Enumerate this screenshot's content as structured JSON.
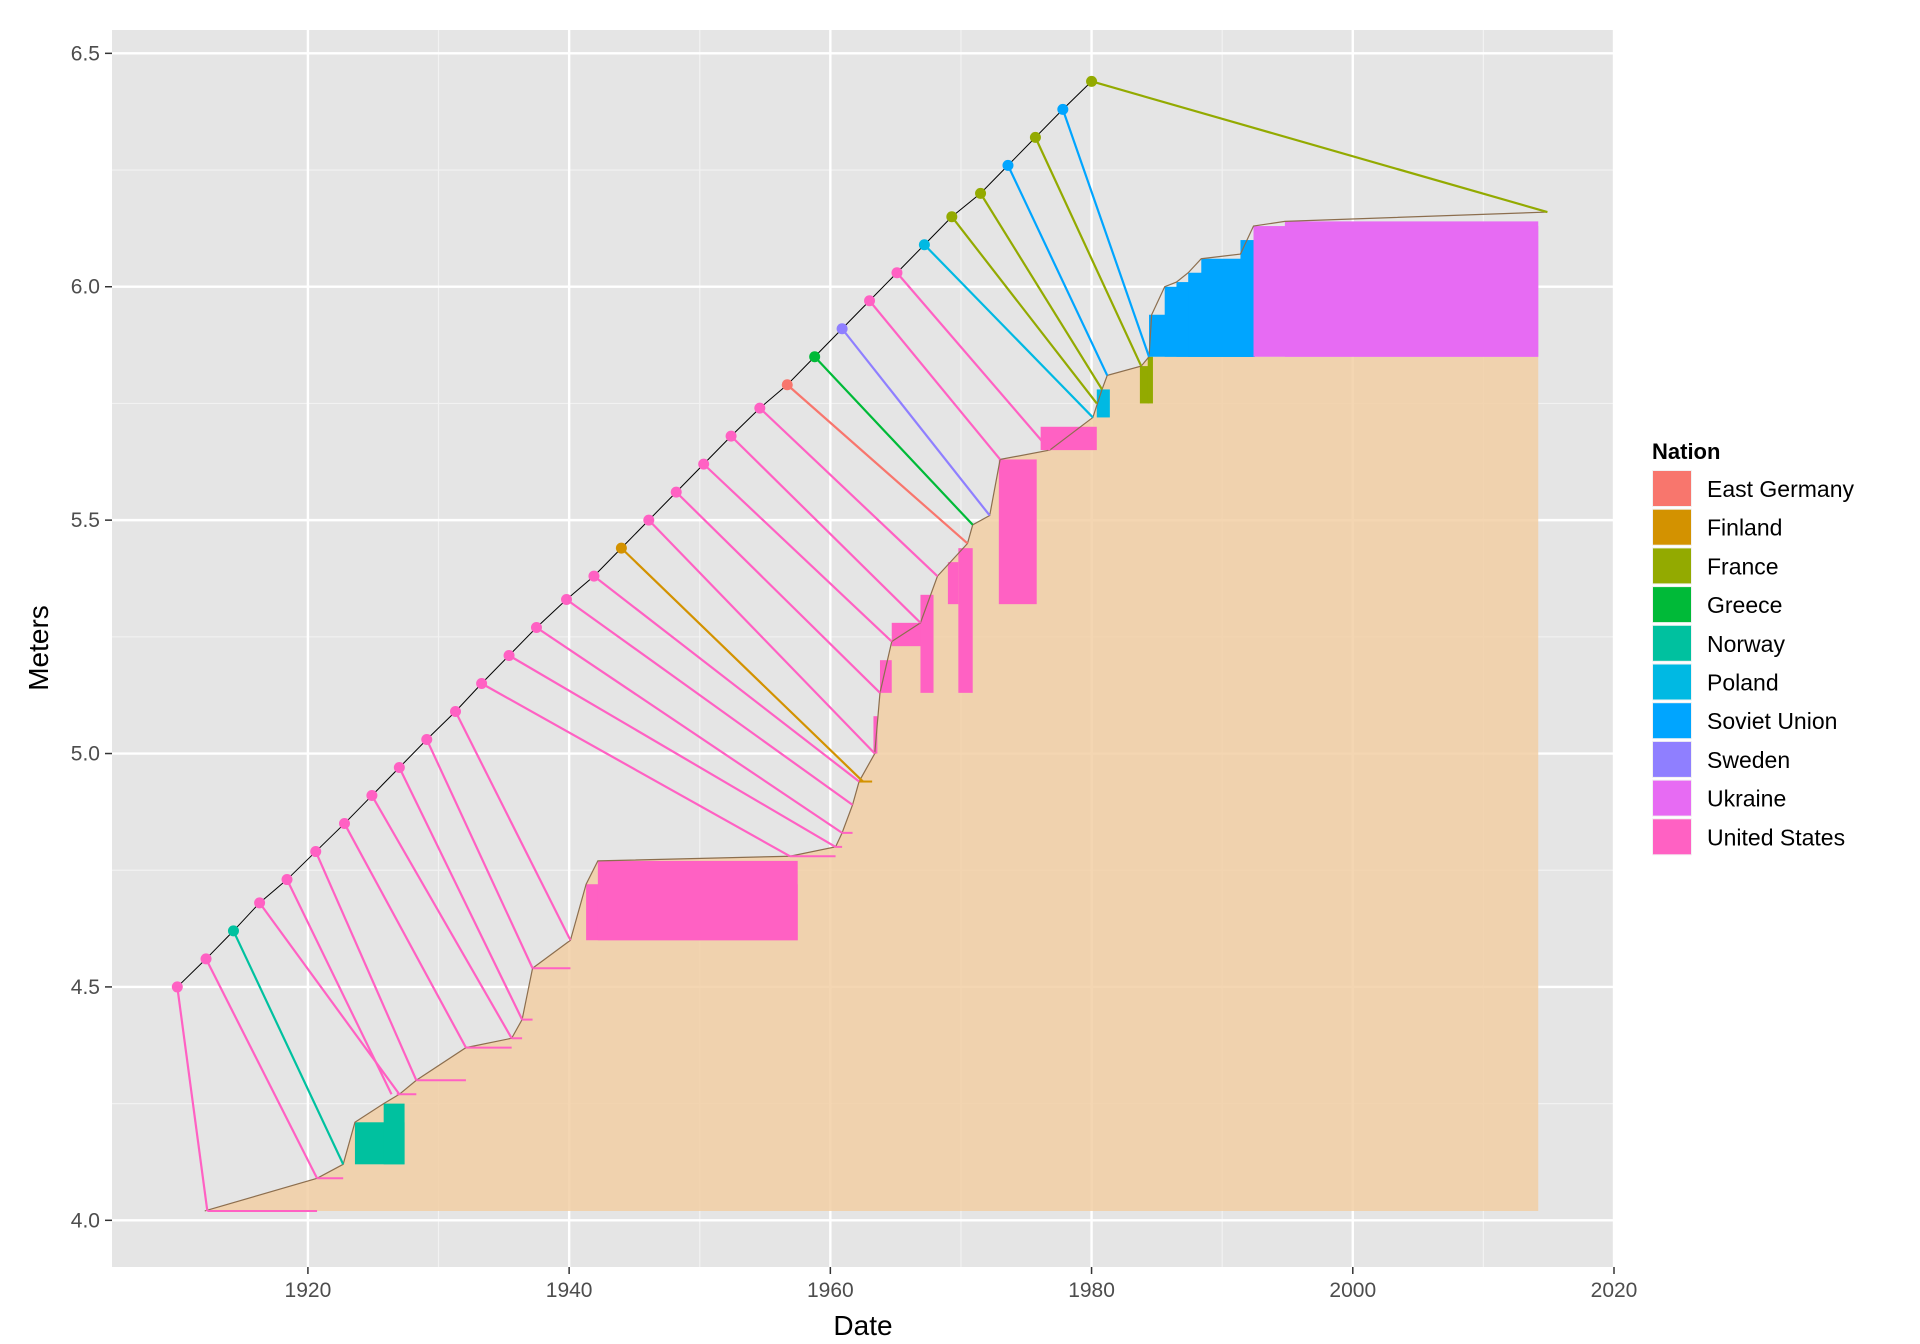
{
  "chart_data": {
    "type": "line",
    "xlabel": "Date",
    "ylabel": "Meters",
    "xlim": [
      1905,
      2020
    ],
    "ylim": [
      3.9,
      6.55
    ],
    "x_ticks": [
      1920,
      1940,
      1960,
      1980,
      2000,
      2020
    ],
    "y_ticks": [
      4.0,
      4.5,
      5.0,
      5.5,
      6.0,
      6.5
    ],
    "y_tick_labels": [
      "4.0",
      "4.5",
      "5.0",
      "5.5",
      "6.0",
      "6.5"
    ],
    "grid": true,
    "legend": {
      "title": "Nation",
      "position": "right"
    },
    "colors": {
      "panel": "#e5e5e5",
      "grid_major": "#ffffff",
      "grid_minor": "#f2f2f2",
      "shaded_area": "#f2cfa5",
      "record_line": "#000000",
      "envelope_line": "#8c6e4e"
    },
    "nations": [
      {
        "name": "East Germany",
        "color": "#F8766D"
      },
      {
        "name": "Finland",
        "color": "#D39200"
      },
      {
        "name": "France",
        "color": "#93AA00"
      },
      {
        "name": "Greece",
        "color": "#00BA38"
      },
      {
        "name": "Norway",
        "color": "#00C19F"
      },
      {
        "name": "Poland",
        "color": "#00B9E3"
      },
      {
        "name": "Soviet Union",
        "color": "#00A5FF"
      },
      {
        "name": "Sweden",
        "color": "#8F7FFF"
      },
      {
        "name": "Ukraine",
        "color": "#E76BF3"
      },
      {
        "name": "United States",
        "color": "#FF61C3"
      }
    ],
    "record_points": [
      {
        "x": 1910.0,
        "y": 4.5,
        "nation": "United States",
        "ex": 1912.3,
        "ey": 4.02
      },
      {
        "x": 1912.2,
        "y": 4.56,
        "nation": "United States",
        "ex": 1920.7,
        "ey": 4.09
      },
      {
        "x": 1914.3,
        "y": 4.62,
        "nation": "Norway",
        "ex": 1922.7,
        "ey": 4.12
      },
      {
        "x": 1916.3,
        "y": 4.68,
        "nation": "United States",
        "ex": 1927.0,
        "ey": 4.27
      },
      {
        "x": 1918.4,
        "y": 4.73,
        "nation": "United States",
        "ex": 1926.4,
        "ey": 4.27
      },
      {
        "x": 1920.6,
        "y": 4.79,
        "nation": "United States",
        "ex": 1928.3,
        "ey": 4.3
      },
      {
        "x": 1922.8,
        "y": 4.85,
        "nation": "United States",
        "ex": 1932.1,
        "ey": 4.37
      },
      {
        "x": 1924.9,
        "y": 4.91,
        "nation": "United States",
        "ex": 1935.6,
        "ey": 4.39
      },
      {
        "x": 1927.0,
        "y": 4.97,
        "nation": "United States",
        "ex": 1936.4,
        "ey": 4.43
      },
      {
        "x": 1929.1,
        "y": 5.03,
        "nation": "United States",
        "ex": 1937.2,
        "ey": 4.54
      },
      {
        "x": 1931.3,
        "y": 5.09,
        "nation": "United States",
        "ex": 1940.1,
        "ey": 4.6
      },
      {
        "x": 1933.3,
        "y": 5.15,
        "nation": "United States",
        "ex": 1956.9,
        "ey": 4.78
      },
      {
        "x": 1935.4,
        "y": 5.21,
        "nation": "United States",
        "ex": 1960.4,
        "ey": 4.8
      },
      {
        "x": 1937.5,
        "y": 5.27,
        "nation": "United States",
        "ex": 1960.9,
        "ey": 4.83
      },
      {
        "x": 1939.8,
        "y": 5.33,
        "nation": "United States",
        "ex": 1961.7,
        "ey": 4.89
      },
      {
        "x": 1941.9,
        "y": 5.38,
        "nation": "United States",
        "ex": 1962.2,
        "ey": 4.94
      },
      {
        "x": 1944.0,
        "y": 5.44,
        "nation": "Finland",
        "ex": 1962.5,
        "ey": 4.94
      },
      {
        "x": 1946.1,
        "y": 5.5,
        "nation": "United States",
        "ex": 1963.4,
        "ey": 5.0
      },
      {
        "x": 1948.2,
        "y": 5.56,
        "nation": "United States",
        "ex": 1963.8,
        "ey": 5.13
      },
      {
        "x": 1950.3,
        "y": 5.62,
        "nation": "United States",
        "ex": 1964.7,
        "ey": 5.24
      },
      {
        "x": 1952.4,
        "y": 5.68,
        "nation": "United States",
        "ex": 1966.9,
        "ey": 5.28
      },
      {
        "x": 1954.6,
        "y": 5.74,
        "nation": "United States",
        "ex": 1968.2,
        "ey": 5.38
      },
      {
        "x": 1956.7,
        "y": 5.79,
        "nation": "East Germany",
        "ex": 1970.5,
        "ey": 5.45
      },
      {
        "x": 1958.8,
        "y": 5.85,
        "nation": "Greece",
        "ex": 1970.9,
        "ey": 5.49
      },
      {
        "x": 1960.9,
        "y": 5.91,
        "nation": "Sweden",
        "ex": 1972.2,
        "ey": 5.51
      },
      {
        "x": 1963.0,
        "y": 5.97,
        "nation": "United States",
        "ex": 1973.0,
        "ey": 5.63
      },
      {
        "x": 1965.1,
        "y": 6.03,
        "nation": "United States",
        "ex": 1976.8,
        "ey": 5.65
      },
      {
        "x": 1967.2,
        "y": 6.09,
        "nation": "Poland",
        "ex": 1980.1,
        "ey": 5.72
      },
      {
        "x": 1969.3,
        "y": 6.15,
        "nation": "France",
        "ex": 1980.4,
        "ey": 5.75
      },
      {
        "x": 1971.5,
        "y": 6.2,
        "nation": "France",
        "ex": 1980.8,
        "ey": 5.78
      },
      {
        "x": 1973.6,
        "y": 6.26,
        "nation": "Soviet Union",
        "ex": 1981.2,
        "ey": 5.81
      },
      {
        "x": 1975.7,
        "y": 6.32,
        "nation": "France",
        "ex": 1983.8,
        "ey": 5.83
      },
      {
        "x": 1977.8,
        "y": 6.38,
        "nation": "Soviet Union",
        "ex": 1984.4,
        "ey": 5.85
      },
      {
        "x": 1980.0,
        "y": 6.44,
        "nation": "France",
        "ex": 2014.9,
        "ey": 6.16
      }
    ],
    "envelope": [
      [
        1912.1,
        4.02
      ],
      [
        1920.7,
        4.09
      ],
      [
        1922.7,
        4.12
      ],
      [
        1923.6,
        4.21
      ],
      [
        1925.8,
        4.25
      ],
      [
        1927.0,
        4.27
      ],
      [
        1928.3,
        4.3
      ],
      [
        1932.1,
        4.37
      ],
      [
        1935.6,
        4.39
      ],
      [
        1936.4,
        4.43
      ],
      [
        1937.2,
        4.54
      ],
      [
        1940.1,
        4.6
      ],
      [
        1941.3,
        4.72
      ],
      [
        1942.2,
        4.77
      ],
      [
        1956.9,
        4.78
      ],
      [
        1960.4,
        4.8
      ],
      [
        1960.9,
        4.83
      ],
      [
        1961.7,
        4.89
      ],
      [
        1962.2,
        4.94
      ],
      [
        1963.4,
        5.0
      ],
      [
        1963.8,
        5.13
      ],
      [
        1964.7,
        5.24
      ],
      [
        1966.9,
        5.28
      ],
      [
        1968.2,
        5.38
      ],
      [
        1970.5,
        5.45
      ],
      [
        1970.9,
        5.49
      ],
      [
        1972.2,
        5.51
      ],
      [
        1973.0,
        5.63
      ],
      [
        1976.8,
        5.65
      ],
      [
        1980.1,
        5.72
      ],
      [
        1980.8,
        5.78
      ],
      [
        1981.2,
        5.81
      ],
      [
        1983.8,
        5.83
      ],
      [
        1984.4,
        5.85
      ],
      [
        1984.6,
        5.94
      ],
      [
        1985.6,
        6.0
      ],
      [
        1986.5,
        6.01
      ],
      [
        1987.4,
        6.03
      ],
      [
        1988.4,
        6.06
      ],
      [
        1991.4,
        6.07
      ],
      [
        1992.4,
        6.13
      ],
      [
        1994.8,
        6.14
      ],
      [
        2014.9,
        6.16
      ]
    ],
    "shaded_area_x": [
      1912.1,
      2014.2
    ],
    "shaded_area_floor": 4.02,
    "span_tails": [
      {
        "x0": 1912.3,
        "x1": 1920.7,
        "y": 4.02,
        "nation": "United States"
      },
      {
        "x0": 1920.7,
        "x1": 1922.7,
        "y": 4.09,
        "nation": "United States"
      },
      {
        "x0": 1926.8,
        "x1": 1928.3,
        "y": 4.27,
        "nation": "United States"
      },
      {
        "x0": 1928.3,
        "x1": 1932.1,
        "y": 4.3,
        "nation": "United States"
      },
      {
        "x0": 1932.1,
        "x1": 1935.6,
        "y": 4.37,
        "nation": "United States"
      },
      {
        "x0": 1935.6,
        "x1": 1936.4,
        "y": 4.39,
        "nation": "United States"
      },
      {
        "x0": 1936.4,
        "x1": 1937.2,
        "y": 4.43,
        "nation": "United States"
      },
      {
        "x0": 1937.2,
        "x1": 1940.1,
        "y": 4.54,
        "nation": "United States"
      },
      {
        "x0": 1956.9,
        "x1": 1960.4,
        "y": 4.78,
        "nation": "United States"
      },
      {
        "x0": 1960.4,
        "x1": 1960.9,
        "y": 4.8,
        "nation": "United States"
      },
      {
        "x0": 1960.9,
        "x1": 1961.7,
        "y": 4.83,
        "nation": "United States"
      },
      {
        "x0": 1962.2,
        "x1": 1963.2,
        "y": 4.94,
        "nation": "Finland"
      }
    ],
    "bars": [
      {
        "x0": 1923.6,
        "x1": 1927.4,
        "y0": 4.12,
        "y1": 4.21,
        "nation": "Norway"
      },
      {
        "x0": 1925.8,
        "x1": 1927.4,
        "y0": 4.12,
        "y1": 4.25,
        "nation": "Norway"
      },
      {
        "x0": 1941.3,
        "x1": 1957.5,
        "y0": 4.6,
        "y1": 4.72,
        "nation": "United States"
      },
      {
        "x0": 1942.2,
        "x1": 1957.5,
        "y0": 4.6,
        "y1": 4.77,
        "nation": "United States"
      },
      {
        "x0": 1963.3,
        "x1": 1963.6,
        "y0": 5.0,
        "y1": 5.08,
        "nation": "United States"
      },
      {
        "x0": 1963.8,
        "x1": 1964.7,
        "y0": 5.13,
        "y1": 5.2,
        "nation": "United States"
      },
      {
        "x0": 1964.7,
        "x1": 1967.0,
        "y0": 5.23,
        "y1": 5.28,
        "nation": "United States"
      },
      {
        "x0": 1966.9,
        "x1": 1967.9,
        "y0": 5.13,
        "y1": 5.34,
        "nation": "United States"
      },
      {
        "x0": 1969.0,
        "x1": 1969.8,
        "y0": 5.32,
        "y1": 5.41,
        "nation": "United States"
      },
      {
        "x0": 1969.8,
        "x1": 1970.9,
        "y0": 5.13,
        "y1": 5.44,
        "nation": "United States"
      },
      {
        "x0": 1972.9,
        "x1": 1975.8,
        "y0": 5.32,
        "y1": 5.63,
        "nation": "United States"
      },
      {
        "x0": 1976.1,
        "x1": 1980.4,
        "y0": 5.65,
        "y1": 5.7,
        "nation": "United States"
      },
      {
        "x0": 1980.4,
        "x1": 1981.4,
        "y0": 5.72,
        "y1": 5.78,
        "nation": "Poland"
      },
      {
        "x0": 1983.7,
        "x1": 1984.4,
        "y0": 5.75,
        "y1": 5.83,
        "nation": "France"
      },
      {
        "x0": 1984.3,
        "x1": 1984.7,
        "y0": 5.75,
        "y1": 5.85,
        "nation": "France"
      },
      {
        "x0": 1984.4,
        "x1": 1992.5,
        "y0": 5.85,
        "y1": 5.94,
        "nation": "Soviet Union"
      },
      {
        "x0": 1985.6,
        "x1": 1992.5,
        "y0": 5.85,
        "y1": 6.0,
        "nation": "Soviet Union"
      },
      {
        "x0": 1986.5,
        "x1": 1992.5,
        "y0": 5.85,
        "y1": 6.01,
        "nation": "Soviet Union"
      },
      {
        "x0": 1987.4,
        "x1": 1992.5,
        "y0": 5.85,
        "y1": 6.03,
        "nation": "Soviet Union"
      },
      {
        "x0": 1988.4,
        "x1": 1992.5,
        "y0": 5.85,
        "y1": 6.06,
        "nation": "Soviet Union"
      },
      {
        "x0": 1991.4,
        "x1": 1992.5,
        "y0": 5.85,
        "y1": 6.1,
        "nation": "Soviet Union"
      },
      {
        "x0": 1992.4,
        "x1": 2014.2,
        "y0": 5.85,
        "y1": 6.13,
        "nation": "Ukraine"
      },
      {
        "x0": 1994.8,
        "x1": 2014.2,
        "y0": 5.85,
        "y1": 6.14,
        "nation": "Ukraine"
      }
    ]
  }
}
